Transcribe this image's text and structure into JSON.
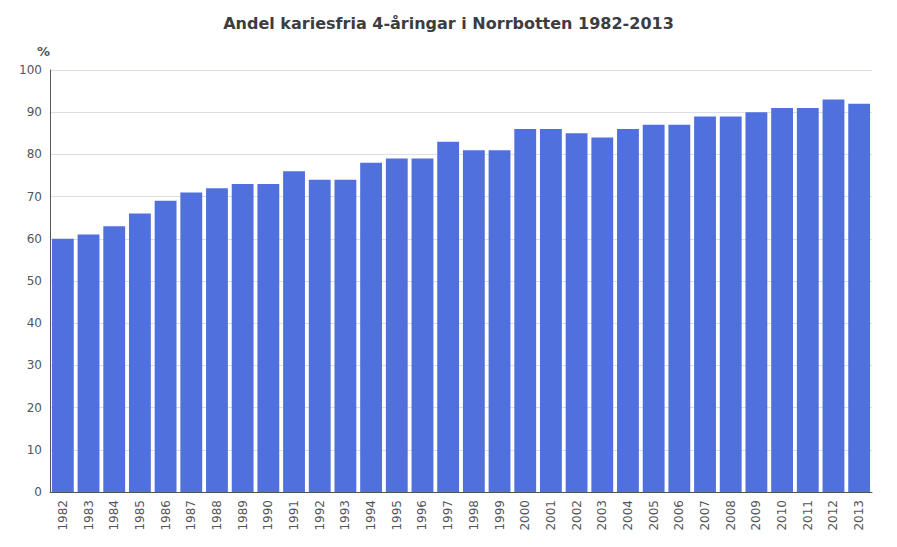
{
  "chart_data": {
    "type": "bar",
    "title": "Andel kariesfria 4-åringar i Norrbotten 1982-2013",
    "ylabel": "%",
    "categories": [
      "1982",
      "1983",
      "1984",
      "1985",
      "1986",
      "1987",
      "1988",
      "1989",
      "1990",
      "1991",
      "1992",
      "1993",
      "1994",
      "1995",
      "1996",
      "1997",
      "1998",
      "1999",
      "2000",
      "2001",
      "2002",
      "2003",
      "2004",
      "2005",
      "2006",
      "2007",
      "2008",
      "2009",
      "2010",
      "2011",
      "2012",
      "2013"
    ],
    "values": [
      60,
      61,
      63,
      66,
      69,
      71,
      72,
      73,
      73,
      76,
      74,
      74,
      78,
      79,
      79,
      83,
      81,
      81,
      86,
      86,
      85,
      84,
      86,
      87,
      87,
      89,
      89,
      90,
      91,
      91,
      93,
      92
    ],
    "ylim": [
      0,
      100
    ],
    "yticks": [
      0,
      10,
      20,
      30,
      40,
      50,
      60,
      70,
      80,
      90,
      100
    ],
    "grid": true
  }
}
